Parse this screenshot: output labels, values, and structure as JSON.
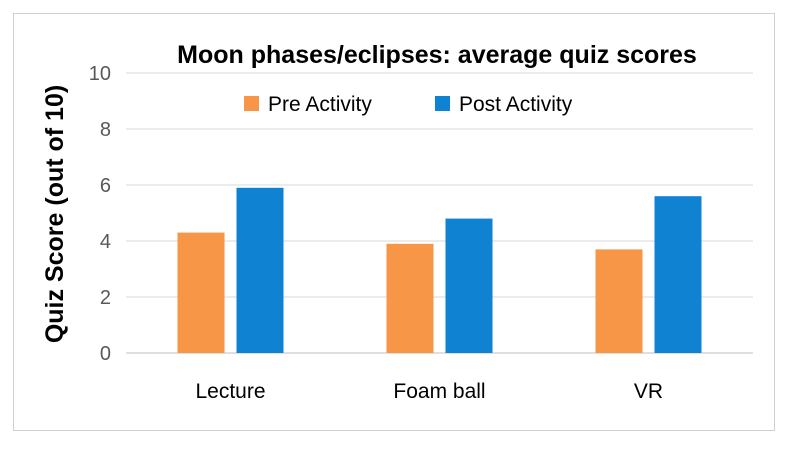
{
  "chart_data": {
    "type": "bar",
    "title": "Moon phases/eclipses: average quiz scores",
    "xlabel": "",
    "ylabel": "Quiz Score (out of 10)",
    "categories": [
      "Lecture",
      "Foam ball",
      "VR"
    ],
    "series": [
      {
        "name": "Pre Activity",
        "values": [
          4.3,
          3.9,
          3.7
        ],
        "color": "#F79646"
      },
      {
        "name": "Post Activity",
        "values": [
          5.9,
          4.8,
          5.6
        ],
        "color": "#0F82D2"
      }
    ],
    "ylim": [
      0,
      10
    ],
    "yticks": [
      "0",
      "2",
      "4",
      "6",
      "8",
      "10"
    ],
    "grid": true,
    "legend_position": "top"
  }
}
